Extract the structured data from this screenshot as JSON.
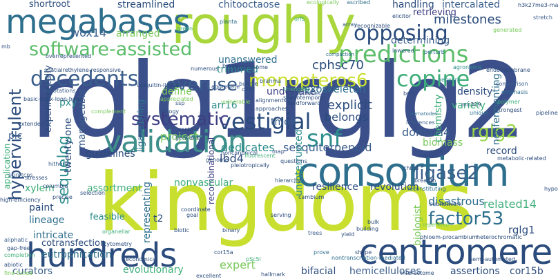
{
  "words": [
    {
      "text": "rglg1rglg2",
      "color": "#3b4f8a"
    },
    {
      "text": "kingdoms",
      "color": "#c9df2f"
    },
    {
      "text": "consortium",
      "color": "#2f6f8e"
    },
    {
      "text": "roughly",
      "color": "#a8d63b"
    },
    {
      "text": "megabases",
      "color": "#2f6f8e"
    },
    {
      "text": "hundreds",
      "color": "#2a4b7c"
    },
    {
      "text": "centromere",
      "color": "#2a4b7c"
    },
    {
      "text": "validation",
      "color": "#3f8f8a"
    },
    {
      "text": "software-assisted",
      "color": "#5bbd6a"
    },
    {
      "text": "predictions",
      "color": "#5bbd6a"
    },
    {
      "text": "opposing",
      "color": "#2a4b7c"
    },
    {
      "text": "decedents",
      "color": "#3a5e8c"
    },
    {
      "text": "overuse",
      "color": "#3a5e8c"
    },
    {
      "text": "monopteros6",
      "color": "#c9df2f"
    },
    {
      "text": "copine",
      "color": "#3fae7a"
    },
    {
      "text": "vestigial",
      "color": "#2a4b7c"
    },
    {
      "text": "systematic",
      "color": "#3e3e83"
    },
    {
      "text": "rglg2",
      "color": "#9ad647"
    },
    {
      "text": "snf",
      "color": "#2f8f8e"
    },
    {
      "text": "ligase2",
      "color": "#3a5e8c"
    },
    {
      "text": "factor53",
      "color": "#2f6f8e"
    },
    {
      "text": "hypervirulent",
      "color": "#2a4b7c"
    },
    {
      "text": "sequelog",
      "color": "#2f8f8e"
    },
    {
      "text": "cphsc70",
      "color": "#2a4b7c"
    },
    {
      "text": "milestones",
      "color": "#2a4b7c"
    },
    {
      "text": "wox14",
      "color": "#3a5e8c"
    },
    {
      "text": "streamlined",
      "color": "#2a4b7c"
    },
    {
      "text": "chitooctaose",
      "color": "#3a5e8c"
    },
    {
      "text": "shortroot",
      "color": "#2a4b7c"
    },
    {
      "text": "arranged",
      "color": "#7ac95a"
    },
    {
      "text": "handling",
      "color": "#2a4b7c"
    },
    {
      "text": "intercalated",
      "color": "#3a5e8c"
    },
    {
      "text": "retrieving",
      "color": "#3e3e83"
    },
    {
      "text": "determining",
      "color": "#3a5e8c"
    },
    {
      "text": "unanswered",
      "color": "#2f6f8e"
    },
    {
      "text": "trimmed",
      "color": "#2f8f8e"
    },
    {
      "text": "undertake",
      "color": "#3e3e83"
    },
    {
      "text": "exoskeleton",
      "color": "#2f6f8e"
    },
    {
      "text": "explicit",
      "color": "#2a4b7c"
    },
    {
      "text": "belongs",
      "color": "#2a4b7c"
    },
    {
      "text": "define",
      "color": "#7ac95a"
    },
    {
      "text": "arr16",
      "color": "#2f8f8e"
    },
    {
      "text": "tmo6",
      "color": "#3a5e8c"
    },
    {
      "text": "project",
      "color": "#7ac95a"
    },
    {
      "text": "dedicates",
      "color": "#2f8f8e"
    },
    {
      "text": "guidelines",
      "color": "#2a4b7c"
    },
    {
      "text": "lbd4",
      "color": "#2a4b7c"
    },
    {
      "text": "sesquiterpenoid",
      "color": "#3a5e8c"
    },
    {
      "text": "domain4",
      "color": "#3a5e8c"
    },
    {
      "text": "biomass",
      "color": "#7ac95a"
    },
    {
      "text": "density",
      "color": "#2a4b7c"
    },
    {
      "text": "variety",
      "color": "#3fae7a"
    },
    {
      "text": "chemistry",
      "color": "#3fae7a"
    },
    {
      "text": "record",
      "color": "#2a4b7c"
    },
    {
      "text": "related14",
      "color": "#3fae7a"
    },
    {
      "text": "disastrous",
      "color": "#2f6f8e"
    },
    {
      "text": "rglg1",
      "color": "#2a4b7c"
    },
    {
      "text": "cor15b",
      "color": "#2a4b7c"
    },
    {
      "text": "assertions",
      "color": "#2a4b7c"
    },
    {
      "text": "hemicelluloses",
      "color": "#3a5e8c"
    },
    {
      "text": "bifacial",
      "color": "#2a4b7c"
    },
    {
      "text": "expert",
      "color": "#7ac95a"
    },
    {
      "text": "recombinational",
      "color": "#3e3e83"
    },
    {
      "text": "evolutionary",
      "color": "#3fae7a"
    },
    {
      "text": "eutrophication",
      "color": "#2f6f8e"
    },
    {
      "text": "curators",
      "color": "#3a5e8c"
    },
    {
      "text": "cotransfection",
      "color": "#2a4b7c"
    },
    {
      "text": "intricate",
      "color": "#2f6f8e"
    },
    {
      "text": "lineage",
      "color": "#2f6f8e"
    },
    {
      "text": "paint",
      "color": "#2a4b7c"
    },
    {
      "text": "xylem",
      "color": "#3fae7a"
    },
    {
      "text": "assortment",
      "color": "#3fae7a"
    },
    {
      "text": "nonvascular",
      "color": "#3fae7a"
    },
    {
      "text": "feasible",
      "color": "#2f8f8e"
    },
    {
      "text": "resilience",
      "color": "#2a4b7c"
    },
    {
      "text": "revolution",
      "color": "#2a4b7c"
    },
    {
      "text": "representing",
      "color": "#2f6f8e"
    },
    {
      "text": "uninterrupted",
      "color": "#2f8f8e"
    },
    {
      "text": "pxy",
      "color": "#2f8f8e"
    },
    {
      "text": "manageable",
      "color": "#3a5e8c"
    },
    {
      "text": "twenty-one",
      "color": "#2a4b7c"
    },
    {
      "text": "plc",
      "color": "#3a5e8c"
    },
    {
      "text": "experimentally",
      "color": "#2a4b7c"
    },
    {
      "text": "application",
      "color": "#3fae7a"
    },
    {
      "text": "nonfermenting",
      "color": "#2f6f8e"
    },
    {
      "text": "ligase1/ring",
      "color": "#2f6f8e"
    },
    {
      "text": "t2",
      "color": "#2a4b7c"
    },
    {
      "text": "biologist",
      "color": "#7ac95a"
    }
  ],
  "minor_words": [
    {
      "text": "ecologically"
    },
    {
      "text": "ascribed"
    },
    {
      "text": "array"
    },
    {
      "text": "orfs"
    },
    {
      "text": "planta"
    },
    {
      "text": "green"
    },
    {
      "text": "elicitor"
    },
    {
      "text": "stretch"
    },
    {
      "text": "generated"
    },
    {
      "text": "h3k27me3-marked"
    },
    {
      "text": "compaction"
    },
    {
      "text": "lowered"
    },
    {
      "text": "perturb"
    },
    {
      "text": "agronomic"
    },
    {
      "text": "endomembrane"
    },
    {
      "text": "network"
    },
    {
      "text": "comparison"
    },
    {
      "text": "emphasis"
    },
    {
      "text": "polymer"
    },
    {
      "text": "mir319"
    },
    {
      "text": "unique"
    },
    {
      "text": "strongest"
    },
    {
      "text": "pipeline"
    },
    {
      "text": "brm"
    },
    {
      "text": "nematodes"
    },
    {
      "text": "inferences"
    },
    {
      "text": "code"
    },
    {
      "text": "explain"
    },
    {
      "text": "chitin"
    },
    {
      "text": "breadth"
    },
    {
      "text": "reconstituting"
    },
    {
      "text": "subnetwork"
    },
    {
      "text": "repetitive"
    },
    {
      "text": "phloem-procambium"
    },
    {
      "text": "heterochromatic"
    },
    {
      "text": "semi-automated"
    },
    {
      "text": "interactome"
    },
    {
      "text": "nontranscription-mediated"
    },
    {
      "text": "hallmark"
    },
    {
      "text": "excellent"
    },
    {
      "text": "pSc5l"
    },
    {
      "text": "cor15a"
    },
    {
      "text": "economical"
    },
    {
      "text": "cytometry"
    },
    {
      "text": "organellar"
    },
    {
      "text": "biotic"
    },
    {
      "text": "goal"
    },
    {
      "text": "binary"
    },
    {
      "text": "trees"
    },
    {
      "text": "yield"
    },
    {
      "text": "building"
    },
    {
      "text": "bulk"
    },
    {
      "text": "shape"
    },
    {
      "text": "prove"
    },
    {
      "text": "coordinate"
    },
    {
      "text": "serving"
    },
    {
      "text": "cambium"
    },
    {
      "text": "hierarchy"
    },
    {
      "text": "genome"
    },
    {
      "text": "pleiotropically"
    },
    {
      "text": "noncanonical"
    },
    {
      "text": "map"
    },
    {
      "text": "fluorescent"
    },
    {
      "text": "context"
    },
    {
      "text": "genbank"
    },
    {
      "text": "complement"
    },
    {
      "text": "biology"
    },
    {
      "text": "ssp"
    },
    {
      "text": "appreciated"
    },
    {
      "text": "ubiquitin-ligase"
    },
    {
      "text": "overrepresented"
    },
    {
      "text": "spatialrethylene-responsive"
    },
    {
      "text": "annotations"
    },
    {
      "text": "basic-helix-loop-helix"
    },
    {
      "text": "extended"
    },
    {
      "text": "hitherto"
    },
    {
      "text": "columbia"
    },
    {
      "text": "precise"
    },
    {
      "text": "stresses"
    },
    {
      "text": "scin-tcps"
    },
    {
      "text": "high-efficiency"
    },
    {
      "text": "aliphatic"
    },
    {
      "text": "gap-free"
    },
    {
      "text": "completion"
    },
    {
      "text": "abiotic"
    },
    {
      "text": "fine-tuned"
    },
    {
      "text": "mb"
    },
    {
      "text": "chromosome"
    },
    {
      "text": "numerous"
    },
    {
      "text": "broad"
    },
    {
      "text": "brahma"
    },
    {
      "text": "strengths"
    },
    {
      "text": "spatiotemporal"
    },
    {
      "text": "hypotheses"
    },
    {
      "text": "feedforward"
    },
    {
      "text": "approaches"
    },
    {
      "text": "alignments"
    },
    {
      "text": "vulnerable"
    },
    {
      "text": "aggregate"
    },
    {
      "text": "bundle"
    },
    {
      "text": "c2h2"
    },
    {
      "text": "selection"
    },
    {
      "text": "questions"
    },
    {
      "text": "metabolic-related"
    },
    {
      "text": "hypothesis-driven"
    },
    {
      "text": "recognizable"
    }
  ]
}
